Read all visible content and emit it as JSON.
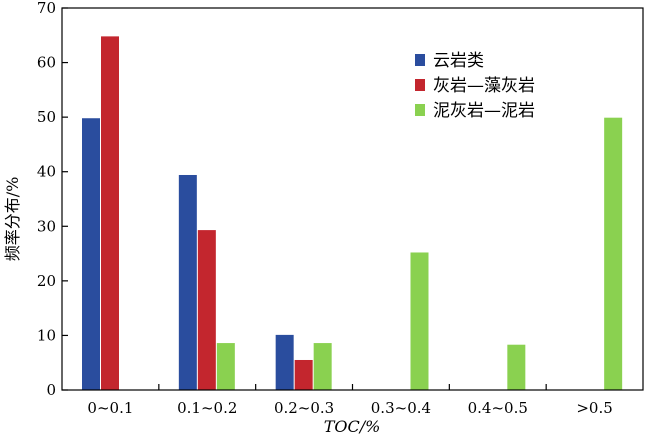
{
  "chart_data": {
    "type": "bar",
    "title": "",
    "xlabel": "TOC/%",
    "ylabel": "频率分布/%",
    "ylim": [
      0,
      70
    ],
    "yticks": [
      0,
      10,
      20,
      30,
      40,
      50,
      60,
      70
    ],
    "categories": [
      "0~0.1",
      "0.1~0.2",
      "0.2~0.3",
      "0.3~0.4",
      "0.4~0.5",
      ">0.5"
    ],
    "series": [
      {
        "name": "云岩类",
        "color": "#2a4d9e",
        "values": [
          49.8,
          39.4,
          10.1,
          0,
          0,
          0
        ]
      },
      {
        "name": "灰岩—藻灰岩",
        "color": "#c3262e",
        "values": [
          64.8,
          29.3,
          5.5,
          0,
          0,
          0
        ]
      },
      {
        "name": "泥灰岩—泥岩",
        "color": "#8ad150",
        "values": [
          0,
          8.6,
          8.6,
          25.2,
          8.3,
          49.9
        ]
      }
    ],
    "grid": false,
    "legend_position": "top-right"
  }
}
